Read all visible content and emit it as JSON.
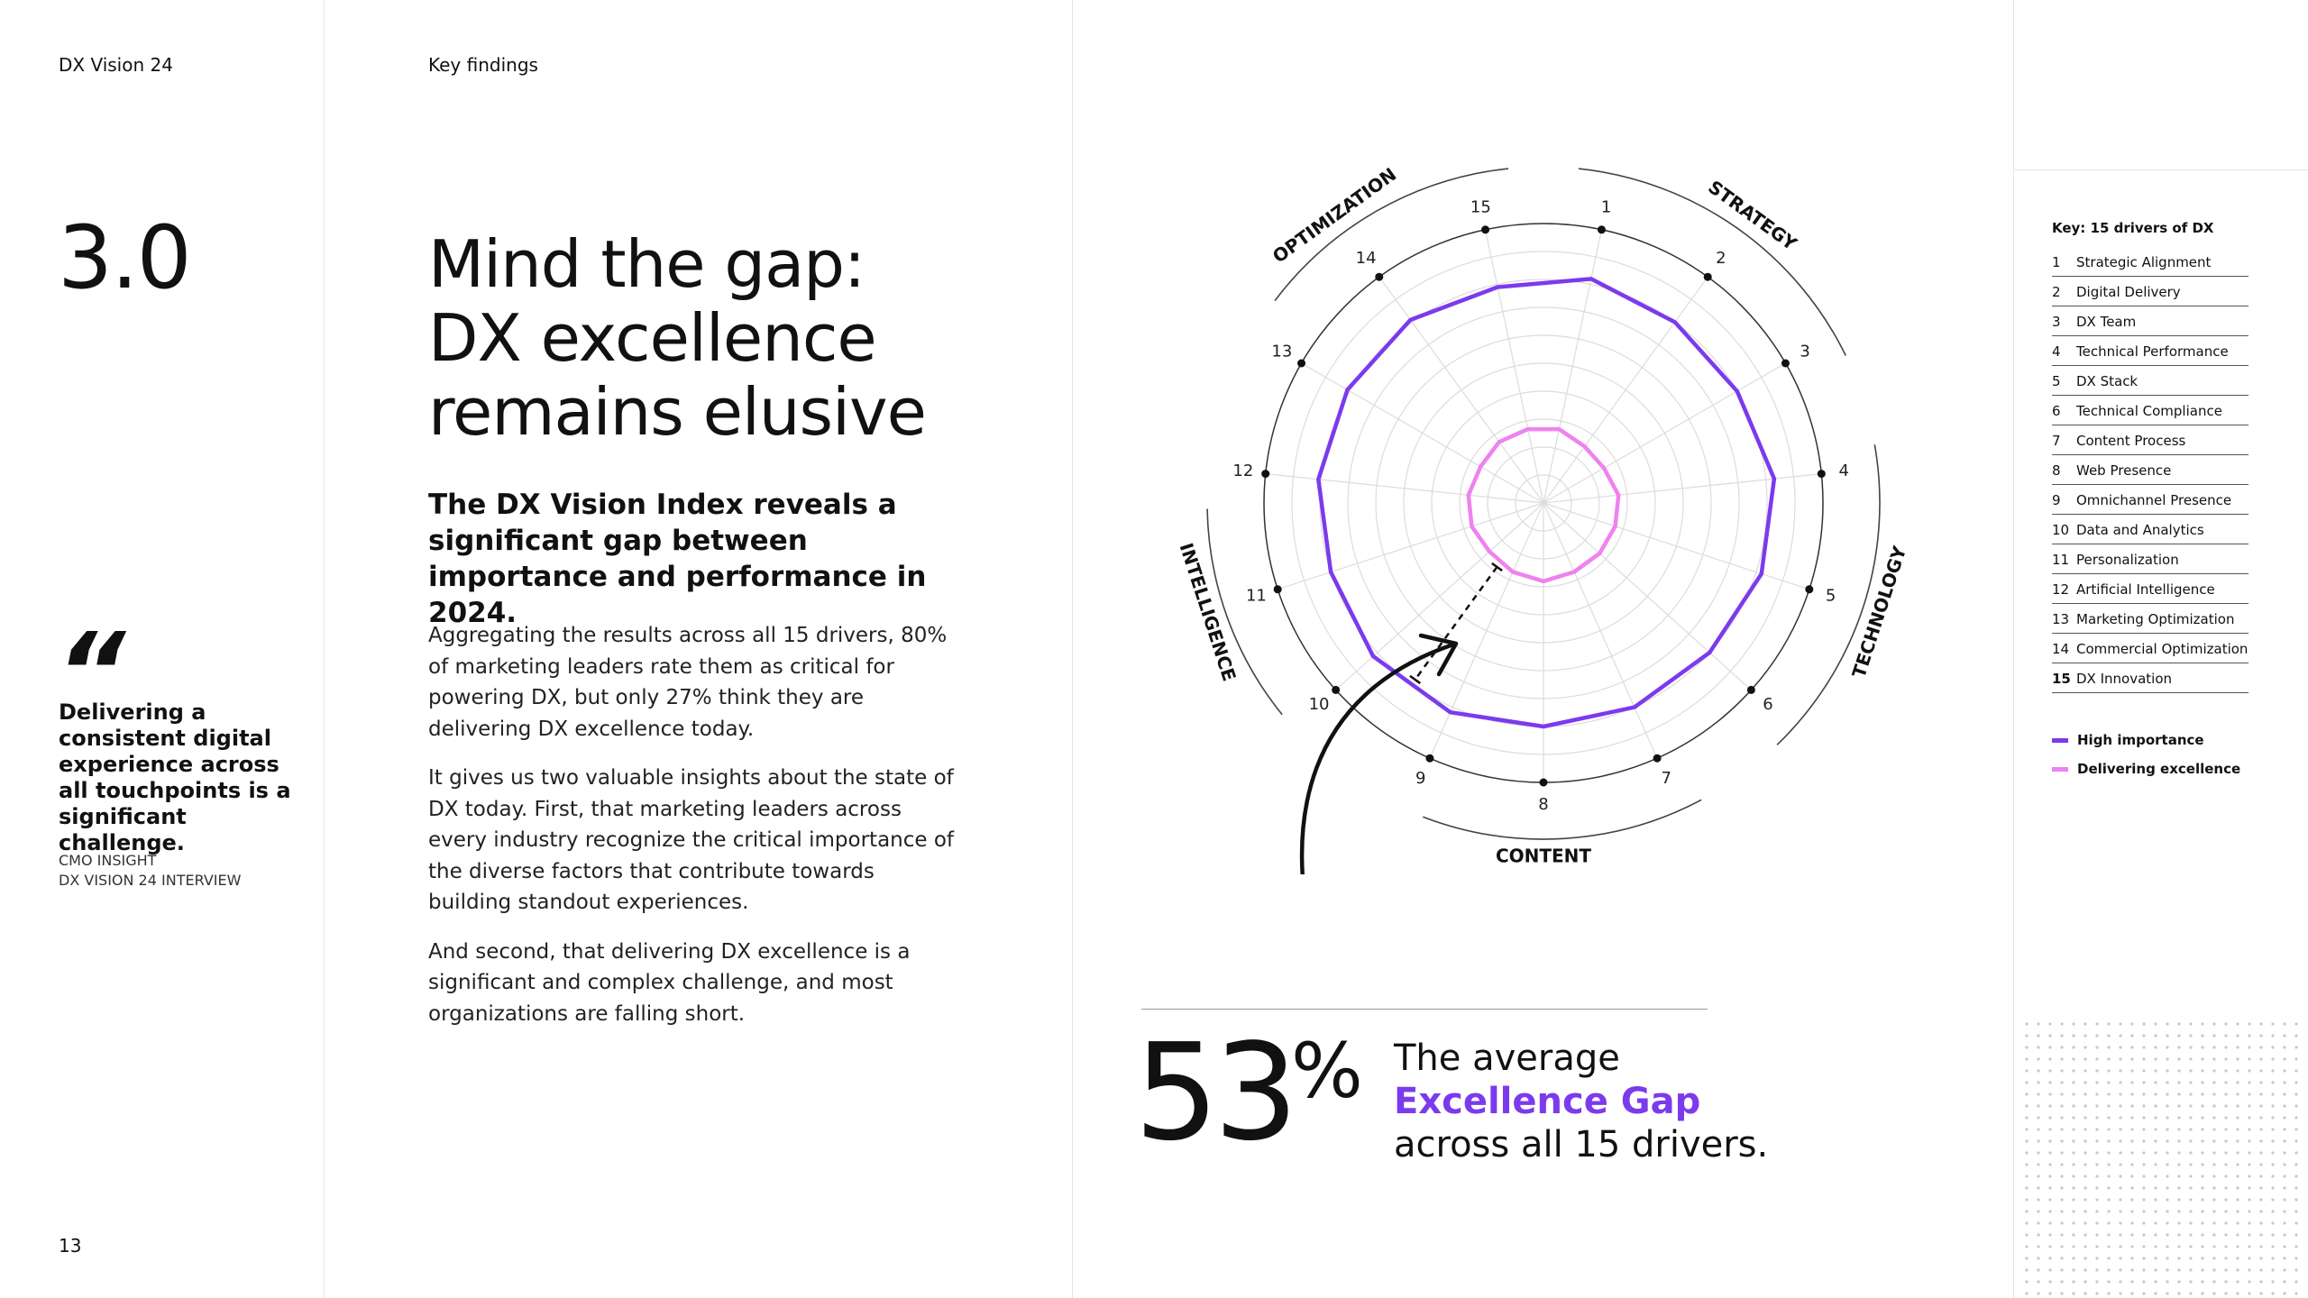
{
  "header": {
    "brand": "DX Vision 24",
    "section": "Key findings"
  },
  "section_number": "3.0",
  "page_number": "13",
  "quote": {
    "mark": "“",
    "text": "Delivering a consistent digital experience across all touchpoints is a significant challenge.",
    "source_line1": "CMO INSIGHT",
    "source_line2": "DX VISION 24 INTERVIEW"
  },
  "headline": {
    "line1": "Mind the gap:",
    "line2": "DX excellence",
    "line3": "remains elusive"
  },
  "subheadline": "The DX Vision Index reveals a significant gap between importance and performance in 2024.",
  "body": {
    "p1": "Aggregating the results across all 15 drivers, 80% of marketing leaders rate them as critical for powering DX, but only 27% think they are delivering DX excellence today.",
    "p2": "It gives us two valuable insights about the state of DX today. First, that marketing leaders across every industry recognize the critical importance of the diverse factors that contribute towards building standout experiences.",
    "p3": "And second, that delivering DX excellence is a significant and complex challenge, and most organizations are falling short."
  },
  "stat": {
    "value": "53",
    "unit": "%",
    "line1": "The average",
    "accent": "Excellence Gap",
    "line3": "across all 15 drivers."
  },
  "colors": {
    "high_importance": "#7c3aed",
    "delivering_excellence": "#ee82ee",
    "accent_text": "#7c3aed",
    "text": "#111111"
  },
  "chart_data": {
    "type": "radar",
    "categories": [
      "1",
      "2",
      "3",
      "4",
      "5",
      "6",
      "7",
      "8",
      "9",
      "10",
      "11",
      "12",
      "13",
      "14",
      "15"
    ],
    "groups": [
      "STRATEGY",
      "TECHNOLOGY",
      "CONTENT",
      "INTELLIGENCE",
      "OPTIMIZATION"
    ],
    "rlim": [
      0,
      100
    ],
    "grid": true,
    "series": [
      {
        "name": "High importance",
        "values": [
          82,
          80,
          80,
          83,
          82,
          80,
          80,
          80,
          82,
          82,
          80,
          81,
          81,
          81,
          79
        ]
      },
      {
        "name": "Delivering excellence",
        "values": [
          27,
          25,
          25,
          27,
          27,
          27,
          27,
          28,
          27,
          26,
          27,
          27,
          26,
          27,
          27
        ]
      }
    ],
    "legend_title": "Key: 15 drivers of DX",
    "legend": [
      "Strategic Alignment",
      "Digital Delivery",
      "DX Team",
      "Technical Performance",
      "DX Stack",
      "Technical Compliance",
      "Content Process",
      "Web Presence",
      "Omnichannel Presence",
      "Data and Analytics",
      "Personalization",
      "Artificial Intelligence",
      "Marketing Optimization",
      "Commercial Optimization",
      "DX Innovation"
    ]
  }
}
